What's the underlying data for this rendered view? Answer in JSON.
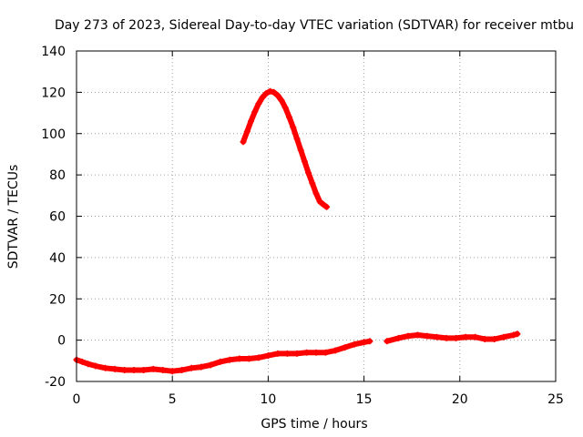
{
  "chart_data": {
    "type": "scatter",
    "title": "Day 273 of 2023, Sidereal Day-to-day VTEC variation (SDTVAR) for receiver mtbu",
    "xlabel": "GPS time / hours",
    "ylabel": "SDTVAR / TECUs",
    "xlim": [
      0,
      25
    ],
    "ylim": [
      -20,
      140
    ],
    "x_ticks": [
      0,
      5,
      10,
      15,
      20,
      25
    ],
    "y_ticks": [
      -20,
      0,
      20,
      40,
      60,
      80,
      100,
      120,
      140
    ],
    "grid": true,
    "marker": "+",
    "series": [
      {
        "name": "SDTVAR",
        "color": "#ff0000",
        "segments": [
          {
            "x": [
              0.0,
              0.3,
              0.6,
              1.0,
              1.5,
              2.0,
              2.5,
              3.0,
              3.5,
              4.0,
              4.5,
              5.0,
              5.5,
              6.0,
              6.5,
              7.0,
              7.5,
              8.0,
              8.5,
              9.0,
              9.5,
              10.0,
              10.5,
              11.0,
              11.5,
              12.0,
              12.5,
              13.0,
              13.5,
              14.0,
              14.5,
              15.0,
              15.3
            ],
            "y": [
              -9.5,
              -10.5,
              -11.5,
              -12.5,
              -13.5,
              -14.0,
              -14.5,
              -14.5,
              -14.5,
              -14.0,
              -14.5,
              -15.0,
              -14.5,
              -13.5,
              -13.0,
              -12.0,
              -10.5,
              -9.5,
              -9.0,
              -9.0,
              -8.5,
              -7.5,
              -6.5,
              -6.5,
              -6.5,
              -6.0,
              -6.0,
              -6.0,
              -5.0,
              -3.5,
              -2.0,
              -1.0,
              -0.5
            ]
          },
          {
            "x": [
              16.2,
              16.8,
              17.3,
              17.8,
              18.3,
              18.8,
              19.3,
              19.8,
              20.3,
              20.8,
              21.3,
              21.8,
              22.3,
              22.8,
              23.0
            ],
            "y": [
              -0.5,
              1.0,
              2.0,
              2.5,
              2.0,
              1.5,
              1.0,
              1.0,
              1.5,
              1.5,
              0.5,
              0.5,
              1.5,
              2.5,
              3.0
            ]
          },
          {
            "x": [
              8.7,
              8.9,
              9.1,
              9.3,
              9.5,
              9.7,
              9.9,
              10.1,
              10.3,
              10.5,
              10.7,
              10.9,
              11.1,
              11.3,
              11.5,
              11.7,
              11.9,
              12.1,
              12.3,
              12.5,
              12.7,
              12.9,
              13.05
            ],
            "y": [
              96.0,
              101.0,
              106.0,
              110.5,
              114.5,
              117.5,
              119.5,
              120.5,
              120.0,
              118.5,
              116.0,
              112.5,
              108.0,
              103.0,
              97.5,
              92.0,
              86.5,
              81.0,
              76.0,
              71.0,
              67.0,
              65.5,
              64.5
            ]
          }
        ]
      }
    ]
  }
}
